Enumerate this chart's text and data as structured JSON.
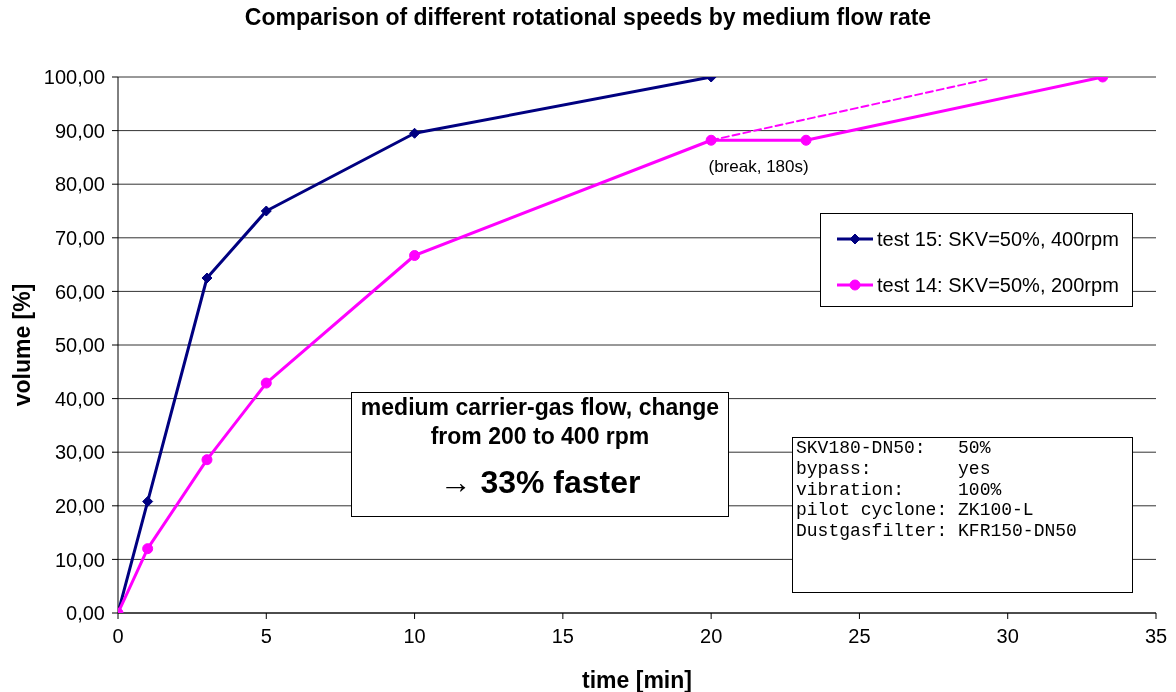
{
  "chart_data": {
    "type": "line",
    "title": "Comparison of different rotational speeds by medium flow rate",
    "xlabel": "time [min]",
    "ylabel": "volume [%]",
    "series": [
      {
        "name": "test 15: SKV=50%, 400rpm",
        "color": "#000080",
        "marker": "diamond",
        "x": [
          0,
          1,
          3,
          5,
          10,
          20
        ],
        "values": [
          0,
          20.8,
          62.5,
          75,
          89.5,
          100
        ]
      },
      {
        "name": "test 14: SKV=50%, 200rpm",
        "color": "#ff00ff",
        "marker": "circle",
        "x": [
          0,
          1,
          3,
          5,
          10,
          20,
          23.2,
          33.2
        ],
        "values": [
          0,
          12,
          28.6,
          42.9,
          66.7,
          88.2,
          88.2,
          100
        ]
      },
      {
        "type": "line",
        "color": "#ff00ff",
        "marker": "none",
        "line_style": "dashed",
        "x": [
          20,
          29.4
        ],
        "values": [
          88.2,
          99.7
        ]
      }
    ],
    "xlim": [
      0,
      35
    ],
    "xticks": [
      0,
      5,
      10,
      15,
      20,
      25,
      30,
      35
    ],
    "ylim": [
      0,
      100
    ],
    "yticks": [
      {
        "value": 0,
        "label": "0,00"
      },
      {
        "value": 10,
        "label": "10,00"
      },
      {
        "value": 20,
        "label": "20,00"
      },
      {
        "value": 30,
        "label": "30,00"
      },
      {
        "value": 40,
        "label": "40,00"
      },
      {
        "value": 50,
        "label": "50,00"
      },
      {
        "value": 60,
        "label": "60,00"
      },
      {
        "value": 70,
        "label": "70,00"
      },
      {
        "value": 80,
        "label": "80,00"
      },
      {
        "value": 90,
        "label": "90,00"
      },
      {
        "value": 100,
        "label": "100,00"
      }
    ],
    "grid": "y",
    "legend": "top right",
    "annotations": [
      {
        "text": "(break, 180s)",
        "x": 21.6,
        "y": 88.2
      },
      "medium carrier-gas flow, change from 200 to 400 rpm",
      "→ 33% faster",
      "SKV180-DN50:   50%",
      "bypass:        yes",
      "vibration:     100%",
      "pilot cyclone: ZK100-L",
      "Dustgasfilter: KFR150-DN50"
    ]
  }
}
